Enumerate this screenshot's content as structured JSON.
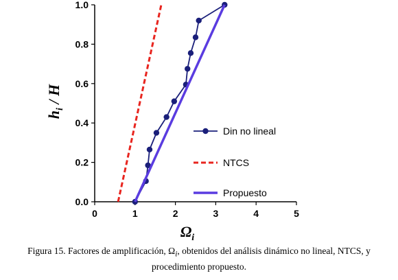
{
  "chart_data": {
    "type": "line",
    "xlim": [
      0,
      5
    ],
    "ylim": [
      0,
      1
    ],
    "xticks": [
      "0",
      "1",
      "2",
      "3",
      "4",
      "5"
    ],
    "yticks": [
      "0.0",
      "0.2",
      "0.4",
      "0.6",
      "0.8",
      "1.0"
    ],
    "xlabel_main": "Ω",
    "xlabel_sub": "i",
    "ylabel_main_h": "h",
    "ylabel_sub": "i",
    "ylabel_rest": " / H",
    "legend_position": "right",
    "grid": false,
    "series": [
      {
        "name": "Din no lineal",
        "color": "#1a1f7a",
        "style": "line-marker",
        "points": [
          [
            1.0,
            0.0
          ],
          [
            1.27,
            0.105
          ],
          [
            1.32,
            0.185
          ],
          [
            1.36,
            0.265
          ],
          [
            1.53,
            0.35
          ],
          [
            1.78,
            0.43
          ],
          [
            1.97,
            0.51
          ],
          [
            2.26,
            0.595
          ],
          [
            2.3,
            0.675
          ],
          [
            2.38,
            0.755
          ],
          [
            2.5,
            0.835
          ],
          [
            2.58,
            0.92
          ],
          [
            3.22,
            1.0
          ]
        ]
      },
      {
        "name": "NTCS",
        "color": "#e8251f",
        "style": "dashed",
        "points": [
          [
            0.58,
            0.0
          ],
          [
            1.65,
            1.0
          ]
        ]
      },
      {
        "name": "Propuesto",
        "color": "#5a3ce0",
        "style": "solid",
        "points": [
          [
            1.0,
            0.0
          ],
          [
            3.22,
            1.0
          ]
        ]
      }
    ]
  },
  "caption": {
    "line1": "Figura 15.  Factores de amplificación, Ω",
    "line1_sub": "i",
    "line1_rest": ", obtenidos del análisis dinámico no lineal, NTCS, y",
    "line2": "procedimiento propuesto."
  }
}
